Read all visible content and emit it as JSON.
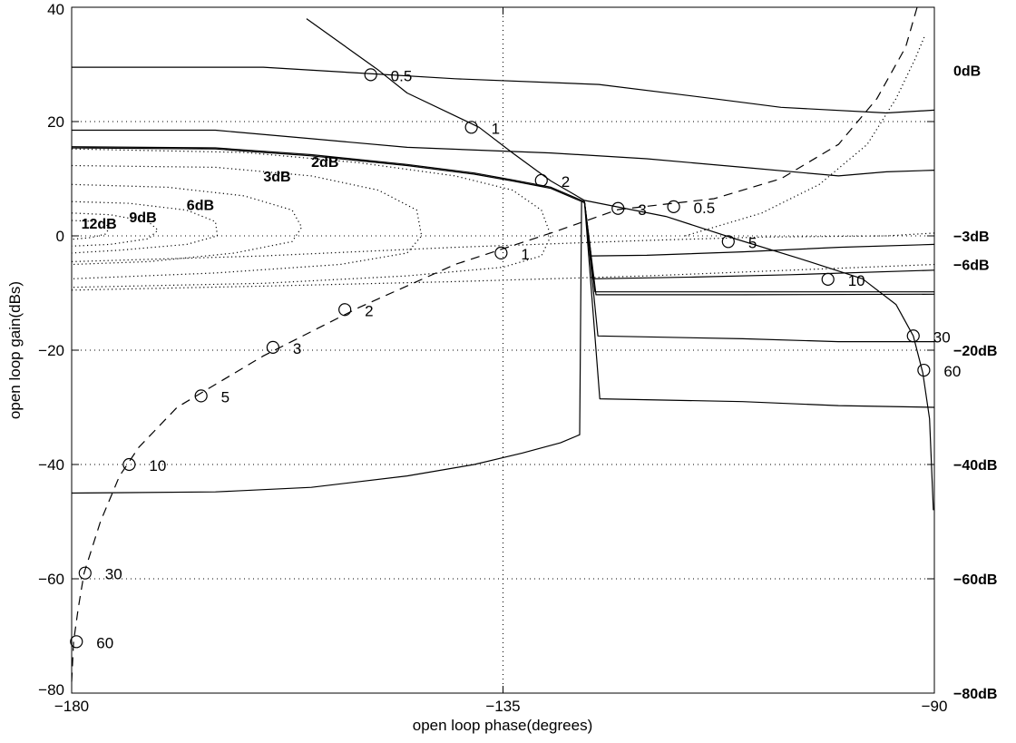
{
  "chart_data": {
    "type": "line",
    "title": "",
    "xlabel": "open loop phase(degrees)",
    "ylabel": "open loop gain(dBs)",
    "xlim": [
      -180,
      -90
    ],
    "ylim": [
      -80,
      40
    ],
    "grid": true,
    "x_ticks": [
      -180,
      -135,
      -90
    ],
    "x_tick_labels": [
      "−180",
      "−135",
      "−90"
    ],
    "y_ticks": [
      -80,
      -60,
      -40,
      -20,
      0,
      20,
      40
    ],
    "y_tick_labels": [
      "−80",
      "−60",
      "−40",
      "−20",
      "0",
      "20",
      "40"
    ],
    "closed_loop_contours_right": [
      {
        "label": "0dB",
        "y": 29
      },
      {
        "label": "−3dB",
        "y": 0
      },
      {
        "label": "−6dB",
        "y": -5
      },
      {
        "label": "−20dB",
        "y": -20
      },
      {
        "label": "−40dB",
        "y": -40
      },
      {
        "label": "−60dB",
        "y": -60
      },
      {
        "label": "−80dB",
        "y": -80
      }
    ],
    "closed_loop_contours_left": [
      {
        "label": "2dB",
        "x": -155,
        "y": 13
      },
      {
        "label": "3dB",
        "x": -160,
        "y": 10.5
      },
      {
        "label": "6dB",
        "x": -168,
        "y": 5.5
      },
      {
        "label": "9dB",
        "x": -174,
        "y": 3.3
      },
      {
        "label": "12dB",
        "x": -179,
        "y": 2.2
      }
    ],
    "series": [
      {
        "style": "solid",
        "points": [
          [
            -155.5,
            38
          ],
          [
            -148,
            29
          ],
          [
            -145,
            25
          ],
          [
            -140,
            21
          ],
          [
            -137.5,
            19
          ],
          [
            -134,
            14.5
          ],
          [
            -130,
            9.6
          ],
          [
            -126.5,
            6.2
          ],
          [
            -118,
            3.4
          ],
          [
            -111,
            -0.4
          ],
          [
            -104,
            -4
          ],
          [
            -97.5,
            -7.5
          ],
          [
            -94,
            -12
          ],
          [
            -92.2,
            -17.5
          ],
          [
            -91.2,
            -24
          ],
          [
            -90.5,
            -32
          ],
          [
            -90.1,
            -48
          ]
        ],
        "markers": [
          {
            "x": -148.8,
            "y": 28.2,
            "label": "0.5"
          },
          {
            "x": -138.3,
            "y": 19.0,
            "label": "1"
          },
          {
            "x": -131.0,
            "y": 9.7,
            "label": "2"
          },
          {
            "x": -111.5,
            "y": -1.0,
            "label": "5"
          },
          {
            "x": -101.1,
            "y": -7.6,
            "label": "10"
          },
          {
            "x": -92.2,
            "y": -17.5,
            "label": "30"
          },
          {
            "x": -91.1,
            "y": -23.5,
            "label": "60"
          }
        ]
      },
      {
        "style": "dashed",
        "points": [
          [
            -180,
            -78
          ],
          [
            -179.8,
            -71
          ],
          [
            -179.3,
            -65
          ],
          [
            -178.7,
            -59
          ],
          [
            -177,
            -50
          ],
          [
            -175,
            -42
          ],
          [
            -173,
            -37
          ],
          [
            -169,
            -30
          ],
          [
            -160,
            -21
          ],
          [
            -150,
            -12.5
          ],
          [
            -140,
            -5
          ],
          [
            -130,
            0.5
          ],
          [
            -123,
            4.6
          ],
          [
            -113,
            6.5
          ],
          [
            -106,
            10
          ],
          [
            -100,
            16
          ],
          [
            -96,
            24
          ],
          [
            -93,
            33
          ],
          [
            -91.8,
            40
          ]
        ],
        "markers": [
          {
            "x": -179.5,
            "y": -71,
            "label": "60"
          },
          {
            "x": -178.6,
            "y": -59,
            "label": "30"
          },
          {
            "x": -174,
            "y": -40,
            "label": "10"
          },
          {
            "x": -166.5,
            "y": -28,
            "label": "5"
          },
          {
            "x": -159.0,
            "y": -19.5,
            "label": "3"
          },
          {
            "x": -151.5,
            "y": -12.9,
            "label": "2"
          },
          {
            "x": -135.2,
            "y": -3.0,
            "label": "1"
          },
          {
            "x": -123.0,
            "y": 4.8,
            "label": "3"
          },
          {
            "x": -117.2,
            "y": 5.1,
            "label": "0.5"
          }
        ]
      },
      {
        "style": "solid",
        "points": [
          [
            -180,
            29.5
          ],
          [
            -160,
            29.5
          ],
          [
            -150,
            28.5
          ],
          [
            -140,
            27.5
          ],
          [
            -125,
            26.5
          ],
          [
            -113,
            24
          ],
          [
            -106,
            22.5
          ],
          [
            -95,
            21.5
          ],
          [
            -90,
            22
          ]
        ]
      },
      {
        "style": "solid",
        "points": [
          [
            -180,
            18.5
          ],
          [
            -165,
            18.5
          ],
          [
            -155,
            17
          ],
          [
            -145,
            15.5
          ],
          [
            -130,
            14.5
          ],
          [
            -120,
            13.5
          ],
          [
            -110,
            12
          ],
          [
            -100,
            10.5
          ],
          [
            -95,
            11.2
          ],
          [
            -90,
            11.5
          ]
        ]
      },
      {
        "style": "solid",
        "points": [
          [
            -180,
            15.6
          ],
          [
            -165,
            15.4
          ],
          [
            -155,
            14.2
          ],
          [
            -145,
            12.5
          ],
          [
            -138,
            11
          ],
          [
            -134,
            9.8
          ],
          [
            -130,
            8.5
          ],
          [
            -126.5,
            6
          ]
        ]
      },
      {
        "style": "solid",
        "points": [
          [
            -180,
            15.4
          ],
          [
            -165,
            15.2
          ],
          [
            -155,
            14
          ],
          [
            -145,
            12.3
          ],
          [
            -138,
            10.8
          ],
          [
            -134,
            9.6
          ],
          [
            -130,
            8.3
          ],
          [
            -126.5,
            5.8
          ]
        ]
      },
      {
        "style": "solid",
        "points": [
          [
            -126.5,
            6
          ],
          [
            -125.8,
            -3.5
          ],
          [
            -120,
            -3.4
          ],
          [
            -110,
            -2.8
          ],
          [
            -100,
            -2
          ],
          [
            -90,
            -1.5
          ]
        ]
      },
      {
        "style": "solid",
        "points": [
          [
            -126.5,
            6
          ],
          [
            -125.6,
            -7.5
          ],
          [
            -115,
            -7.2
          ],
          [
            -105,
            -6.8
          ],
          [
            -90,
            -6
          ]
        ]
      },
      {
        "style": "solid",
        "points": [
          [
            -126.5,
            6
          ],
          [
            -125.4,
            -9.8
          ],
          [
            -110,
            -9.8
          ],
          [
            -90,
            -9.8
          ]
        ]
      },
      {
        "style": "solid",
        "points": [
          [
            -126.5,
            6
          ],
          [
            -125.3,
            -10.3
          ],
          [
            -110,
            -10.3
          ],
          [
            -90,
            -10.2
          ]
        ]
      },
      {
        "style": "solid",
        "points": [
          [
            -126.5,
            6
          ],
          [
            -125.1,
            -17.5
          ],
          [
            -110,
            -18
          ],
          [
            -100,
            -18.5
          ],
          [
            -90,
            -18.5
          ]
        ]
      },
      {
        "style": "solid",
        "points": [
          [
            -126.5,
            6
          ],
          [
            -124.9,
            -28.5
          ],
          [
            -110,
            -29
          ],
          [
            -100,
            -29.7
          ],
          [
            -90,
            -30
          ]
        ]
      },
      {
        "style": "solid",
        "points": [
          [
            -180,
            -45
          ],
          [
            -165,
            -44.8
          ],
          [
            -155,
            -44
          ],
          [
            -145,
            -42
          ],
          [
            -138,
            -40
          ],
          [
            -133,
            -38
          ],
          [
            -129,
            -36.2
          ],
          [
            -127,
            -34.8
          ],
          [
            -126.8,
            6
          ]
        ]
      },
      {
        "style": "dotted",
        "points": [
          [
            -180,
            -9.5
          ],
          [
            -160,
            -8.8
          ],
          [
            -140,
            -8
          ],
          [
            -120,
            -7
          ],
          [
            -105,
            -6
          ],
          [
            -90,
            -5
          ]
        ]
      },
      {
        "style": "dotted",
        "points": [
          [
            -180,
            -4.5
          ],
          [
            -160,
            -3.5
          ],
          [
            -140,
            -2
          ],
          [
            -120,
            -0.8
          ],
          [
            -108,
            -0.2
          ],
          [
            -95,
            0
          ],
          [
            -90,
            0.5
          ]
        ]
      },
      {
        "style": "dotted",
        "points": [
          [
            -180,
            15.2
          ],
          [
            -162,
            14.6
          ],
          [
            -150,
            12.8
          ],
          [
            -140,
            10.5
          ],
          [
            -134,
            8
          ],
          [
            -131,
            4.5
          ],
          [
            -130,
            0
          ],
          [
            -131,
            -3.5
          ],
          [
            -135,
            -5.5
          ],
          [
            -145,
            -7
          ],
          [
            -160,
            -8.3
          ],
          [
            -180,
            -9
          ]
        ]
      },
      {
        "style": "dotted",
        "points": [
          [
            -180,
            12.3
          ],
          [
            -165,
            12
          ],
          [
            -155,
            10.5
          ],
          [
            -148,
            8
          ],
          [
            -144,
            4.5
          ],
          [
            -143.5,
            0
          ],
          [
            -145,
            -3
          ],
          [
            -152,
            -5
          ],
          [
            -165,
            -6.5
          ],
          [
            -180,
            -7.5
          ]
        ]
      },
      {
        "style": "dotted",
        "points": [
          [
            -180,
            9
          ],
          [
            -170,
            8.5
          ],
          [
            -162,
            7
          ],
          [
            -157,
            4.5
          ],
          [
            -156,
            1.5
          ],
          [
            -157,
            -1
          ],
          [
            -163,
            -3
          ],
          [
            -172,
            -4.5
          ],
          [
            -180,
            -5
          ]
        ]
      },
      {
        "style": "dotted",
        "points": [
          [
            -180,
            6
          ],
          [
            -174,
            5.7
          ],
          [
            -168,
            4.5
          ],
          [
            -165,
            2.5
          ],
          [
            -164.8,
            0
          ],
          [
            -168,
            -1.5
          ],
          [
            -175,
            -2.5
          ],
          [
            -180,
            -3
          ]
        ]
      },
      {
        "style": "dotted",
        "points": [
          [
            -180,
            4
          ],
          [
            -176,
            3.7
          ],
          [
            -172,
            2.5
          ],
          [
            -171,
            1
          ],
          [
            -172,
            -0.5
          ],
          [
            -176,
            -1.5
          ],
          [
            -180,
            -1.8
          ]
        ]
      },
      {
        "style": "dotted",
        "points": [
          [
            -180,
            2.7
          ],
          [
            -177,
            2.5
          ],
          [
            -176,
            1.5
          ],
          [
            -176.5,
            0.3
          ],
          [
            -178,
            -0.3
          ],
          [
            -180,
            -0.6
          ]
        ]
      },
      {
        "style": "dotted",
        "points": [
          [
            -116,
            0
          ],
          [
            -108,
            4
          ],
          [
            -102,
            9
          ],
          [
            -97,
            16
          ],
          [
            -94,
            24
          ],
          [
            -92,
            31
          ],
          [
            -91,
            35
          ]
        ]
      }
    ]
  }
}
